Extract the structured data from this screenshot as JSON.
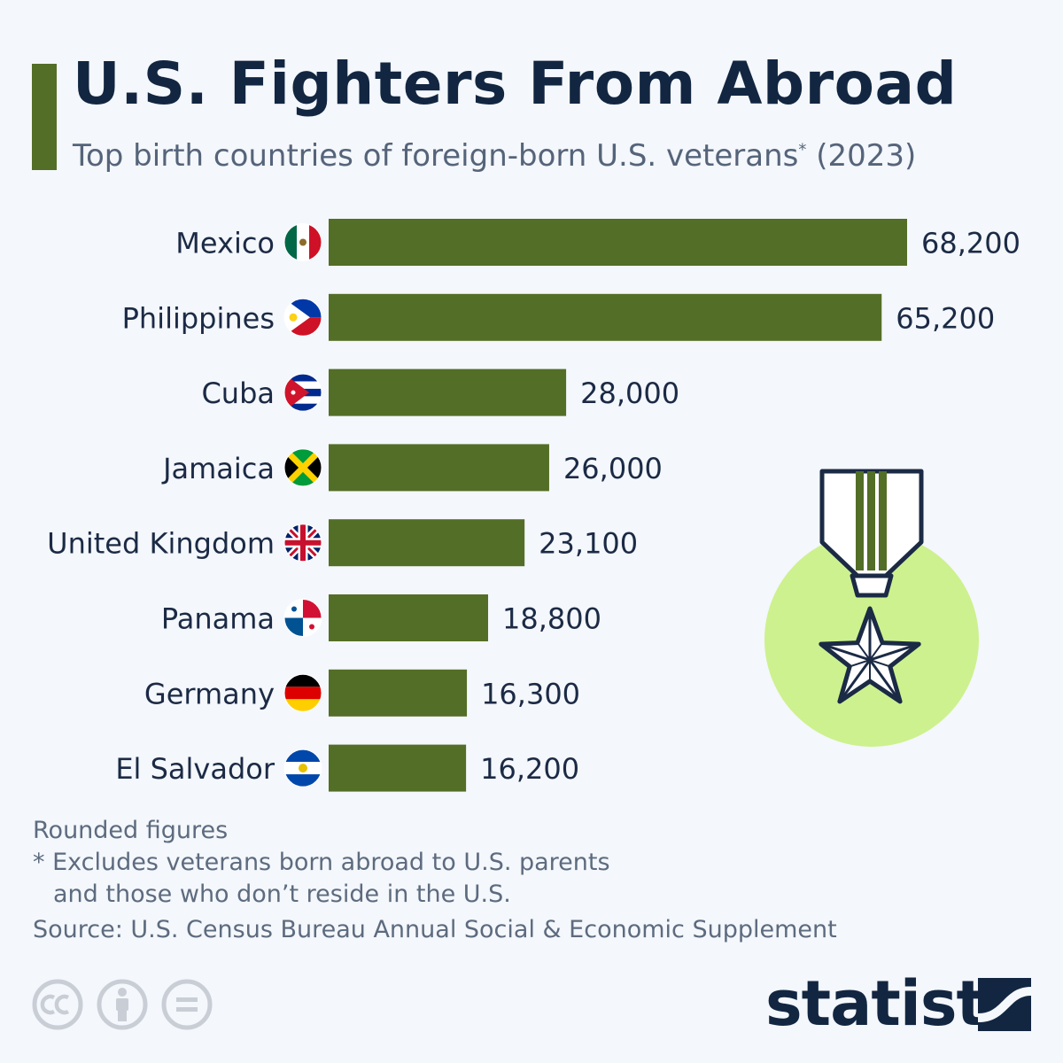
{
  "header": {
    "title": "U.S. Fighters From Abroad",
    "subtitle_main": "Top birth countries of foreign-born U.S. veterans",
    "subtitle_mark": "*",
    "subtitle_year": " (2023)"
  },
  "chart_data": {
    "type": "bar",
    "orientation": "horizontal",
    "title": "U.S. Fighters From Abroad",
    "categories": [
      "Mexico",
      "Philippines",
      "Cuba",
      "Jamaica",
      "United Kingdom",
      "Panama",
      "Germany",
      "El Salvador"
    ],
    "values": [
      68200,
      65200,
      28000,
      26000,
      23100,
      18800,
      16300,
      16200
    ],
    "value_labels": [
      "68,200",
      "65,200",
      "28,000",
      "26,000",
      "23,100",
      "18,800",
      "16,300",
      "16,200"
    ],
    "flag_icons": [
      "mexico-flag-icon",
      "philippines-flag-icon",
      "cuba-flag-icon",
      "jamaica-flag-icon",
      "united-kingdom-flag-icon",
      "panama-flag-icon",
      "germany-flag-icon",
      "el-salvador-flag-icon"
    ],
    "xlim": [
      0,
      68200
    ],
    "grid": false,
    "bar_color": "#536e26"
  },
  "illustration": {
    "icon": "military-medal-icon",
    "circle_color": "#cdf18e"
  },
  "notes": {
    "line1": "Rounded figures",
    "line2": "* Excludes veterans born abroad to U.S. parents",
    "line3": "and those who don’t reside in the U.S."
  },
  "source": "Source: U.S. Census Bureau Annual Social & Economic Supplement",
  "footer": {
    "license_icons": [
      "cc-icon",
      "attribution-icon",
      "no-derivatives-icon"
    ],
    "brand": "statista",
    "brand_icon": "statista-logo-icon"
  },
  "colors": {
    "accent": "#536e26",
    "title": "#122641",
    "muted": "#5d6b7f"
  }
}
